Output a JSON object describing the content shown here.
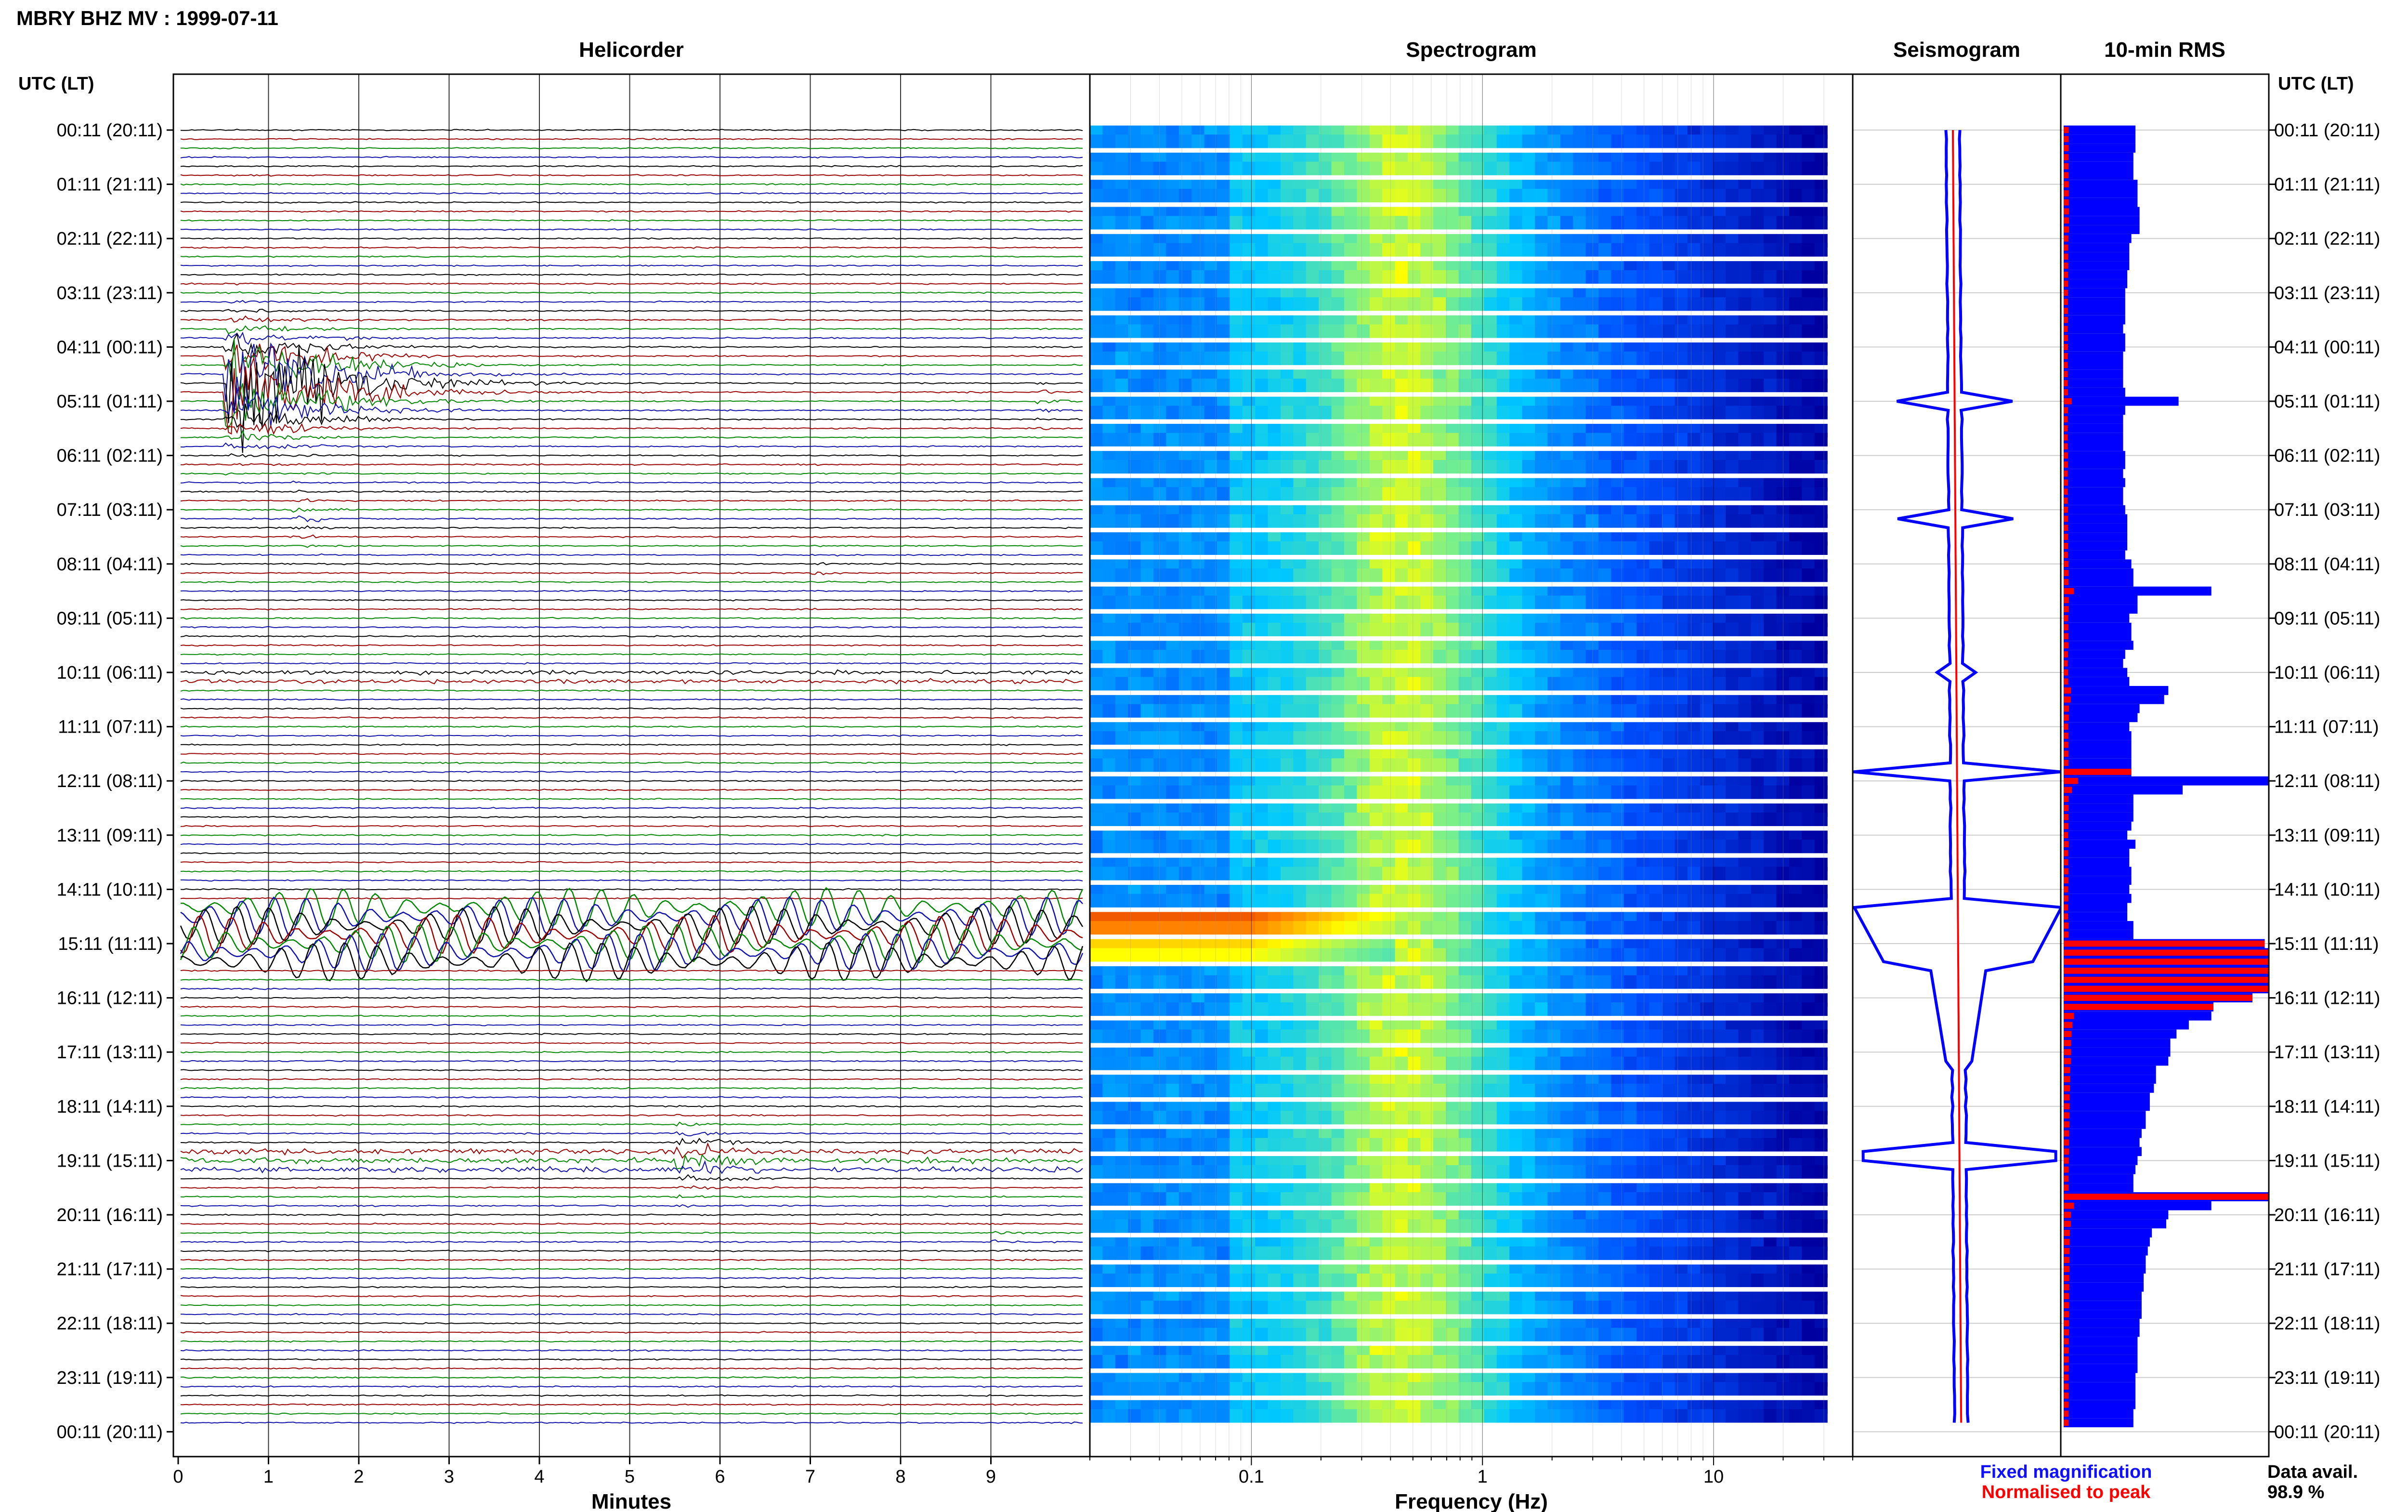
{
  "title": "MBRY BHZ MV : 1999-07-11",
  "panels": {
    "helicorder": "Helicorder",
    "spectrogram": "Spectrogram",
    "seismogram": "Seismogram",
    "rms": "10-min RMS"
  },
  "time_axis_label": "UTC (LT)",
  "hour_labels": [
    "00:11 (20:11)",
    "01:11 (21:11)",
    "02:11 (22:11)",
    "03:11 (23:11)",
    "04:11 (00:11)",
    "05:11 (01:11)",
    "06:11 (02:11)",
    "07:11 (03:11)",
    "08:11 (04:11)",
    "09:11 (05:11)",
    "10:11 (06:11)",
    "11:11 (07:11)",
    "12:11 (08:11)",
    "13:11 (09:11)",
    "14:11 (10:11)",
    "15:11 (11:11)",
    "16:11 (12:11)",
    "17:11 (13:11)",
    "18:11 (14:11)",
    "19:11 (15:11)",
    "20:11 (16:11)",
    "21:11 (17:11)",
    "22:11 (18:11)",
    "23:11 (19:11)",
    "00:11 (20:11)"
  ],
  "helicorder_xlabel": "Minutes",
  "spectrogram_xlabel": "Frequency (Hz)",
  "legend": {
    "fixed": "Fixed magnification",
    "normalised": "Normalised to peak",
    "fixed_color": "#1010ff",
    "normalised_color": "#ff0000"
  },
  "data_availability": {
    "label": "Data avail.",
    "value": "98.9 %"
  },
  "colors": {
    "trace_cycle": [
      "#000000",
      "#9b0000",
      "#008800",
      "#1010aa"
    ],
    "rms_fixed": "#0000ff",
    "rms_normalised": "#ff0000"
  },
  "chart_data": [
    {
      "type": "line",
      "title": "Helicorder",
      "xlabel": "Minutes",
      "xlim": [
        0,
        10
      ],
      "xticks": [
        "0",
        "1",
        "2",
        "3",
        "4",
        "5",
        "6",
        "7",
        "8",
        "9"
      ],
      "rows": 144,
      "events": [
        {
          "hour": 4.5,
          "minute": 0.7,
          "amplitude": "very large"
        },
        {
          "hour": 7.2,
          "minute": 1.3,
          "amplitude": "medium"
        },
        {
          "hour": 5.0,
          "minute": 9.6,
          "amplitude": "medium"
        },
        {
          "hour": 10.0,
          "minute": 0.0,
          "amplitude": "noise band"
        },
        {
          "hour": 14.3,
          "minute": 0.0,
          "amplitude": "large oscillation"
        },
        {
          "hour": 19.0,
          "minute": 5.5,
          "amplitude": "large"
        }
      ]
    },
    {
      "type": "heatmap",
      "title": "Spectrogram",
      "xlabel": "Frequency (Hz)",
      "xscale": "log",
      "xlim": [
        0.02,
        40
      ],
      "xticks": [
        "0.1",
        "1",
        "10"
      ]
    },
    {
      "type": "line",
      "title": "Seismogram",
      "series": [
        {
          "name": "Fixed magnification",
          "color": "#0000ff"
        },
        {
          "name": "Normalised to peak",
          "color": "#ff0000"
        }
      ]
    },
    {
      "type": "bar",
      "title": "10-min RMS",
      "orientation": "horizontal",
      "bins": 144,
      "values": [
        0.35,
        0.35,
        0.35,
        0.34,
        0.34,
        0.34,
        0.36,
        0.36,
        0.36,
        0.37,
        0.37,
        0.37,
        0.33,
        0.32,
        0.32,
        0.32,
        0.31,
        0.31,
        0.3,
        0.3,
        0.3,
        0.3,
        0.29,
        0.3,
        0.3,
        0.29,
        0.29,
        0.29,
        0.29,
        0.3,
        0.56,
        0.3,
        0.29,
        0.29,
        0.29,
        0.29,
        0.3,
        0.3,
        0.29,
        0.3,
        0.29,
        0.29,
        0.3,
        0.31,
        0.31,
        0.31,
        0.31,
        0.3,
        0.33,
        0.34,
        0.34,
        0.72,
        0.36,
        0.36,
        0.32,
        0.33,
        0.33,
        0.34,
        0.3,
        0.29,
        0.31,
        0.32,
        0.51,
        0.49,
        0.37,
        0.36,
        0.32,
        0.33,
        0.33,
        0.33,
        0.33,
        0.33,
        1.0,
        0.58,
        0.34,
        0.34,
        0.34,
        0.33,
        0.31,
        0.35,
        0.32,
        0.32,
        0.33,
        0.33,
        0.32,
        0.33,
        0.31,
        0.31,
        0.34,
        0.34,
        0.98,
        1.0,
        1.0,
        1.0,
        1.0,
        1.0,
        0.92,
        0.73,
        0.72,
        0.61,
        0.55,
        0.52,
        0.52,
        0.51,
        0.45,
        0.45,
        0.44,
        0.42,
        0.42,
        0.4,
        0.4,
        0.38,
        0.37,
        0.38,
        0.36,
        0.35,
        0.34,
        0.34,
        1.0,
        0.72,
        0.51,
        0.5,
        0.43,
        0.42,
        0.41,
        0.4,
        0.4,
        0.39,
        0.39,
        0.38,
        0.38,
        0.38,
        0.37,
        0.37,
        0.36,
        0.36,
        0.36,
        0.36,
        0.35,
        0.35,
        0.35,
        0.35,
        0.34,
        0.34
      ]
    }
  ]
}
